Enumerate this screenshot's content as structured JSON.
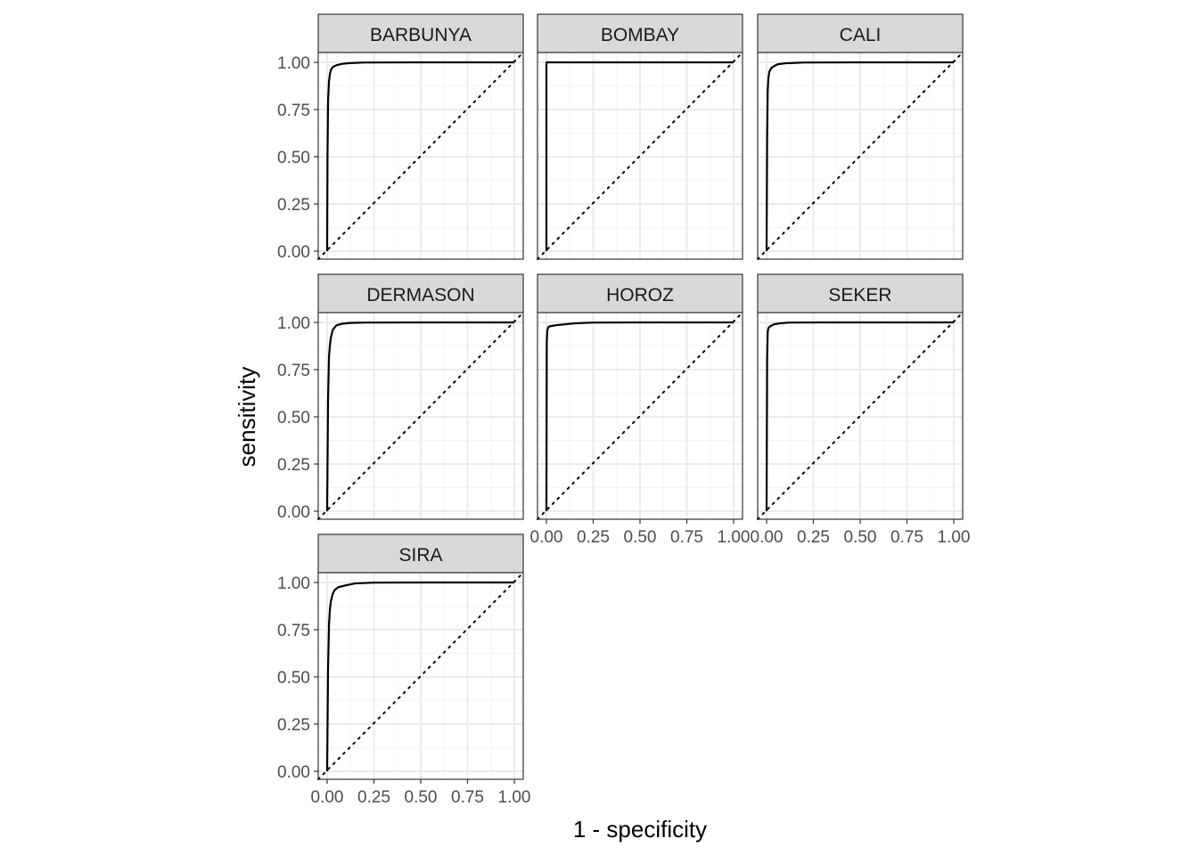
{
  "chart_data": {
    "type": "line",
    "xlabel": "1 - specificity",
    "ylabel": "sensitivity",
    "xlim": [
      0,
      1
    ],
    "ylim": [
      0,
      1
    ],
    "x_ticks": [
      "0.00",
      "0.25",
      "0.50",
      "0.75",
      "1.00"
    ],
    "y_ticks": [
      "0.00",
      "0.25",
      "0.50",
      "0.75",
      "1.00"
    ],
    "tick_values": [
      0,
      0.25,
      0.5,
      0.75,
      1
    ],
    "grid": true,
    "reference_line": "diagonal dotted y = x",
    "colors": {
      "curve": "#000000",
      "strip_fill": "#d9d9d9",
      "strip_border": "#333333",
      "grid_major": "#ebebeb",
      "grid_minor": "#f5f5f5",
      "tick_text": "#4d4d4d"
    },
    "panels": [
      {
        "name": "BARBUNYA",
        "x": [
          0,
          0.002,
          0.005,
          0.01,
          0.015,
          0.02,
          0.03,
          0.05,
          0.08,
          0.12,
          0.2,
          0.5,
          1.0
        ],
        "y": [
          0,
          0.5,
          0.8,
          0.9,
          0.94,
          0.96,
          0.975,
          0.985,
          0.992,
          0.996,
          0.999,
          1.0,
          1.0
        ]
      },
      {
        "name": "BOMBAY",
        "x": [
          0,
          0,
          0.001,
          1.0
        ],
        "y": [
          0,
          0.99,
          1.0,
          1.0
        ]
      },
      {
        "name": "CALI",
        "x": [
          0,
          0.003,
          0.006,
          0.01,
          0.015,
          0.025,
          0.04,
          0.06,
          0.1,
          0.2,
          0.5,
          1.0
        ],
        "y": [
          0,
          0.6,
          0.85,
          0.92,
          0.95,
          0.97,
          0.98,
          0.99,
          0.995,
          0.999,
          1.0,
          1.0
        ]
      },
      {
        "name": "DERMASON",
        "x": [
          0,
          0.005,
          0.01,
          0.015,
          0.02,
          0.03,
          0.05,
          0.08,
          0.12,
          0.2,
          0.5,
          1.0
        ],
        "y": [
          0,
          0.6,
          0.82,
          0.88,
          0.92,
          0.96,
          0.985,
          0.993,
          0.997,
          0.999,
          1.0,
          1.0
        ]
      },
      {
        "name": "HOROZ",
        "x": [
          0,
          0.002,
          0.005,
          0.01,
          0.02,
          0.05,
          0.1,
          0.15,
          0.25,
          0.5,
          1.0
        ],
        "y": [
          0,
          0.9,
          0.96,
          0.975,
          0.98,
          0.985,
          0.99,
          0.995,
          0.999,
          1.0,
          1.0
        ]
      },
      {
        "name": "SEKER",
        "x": [
          0,
          0.003,
          0.006,
          0.01,
          0.02,
          0.04,
          0.07,
          0.12,
          0.3,
          1.0
        ],
        "y": [
          0,
          0.8,
          0.95,
          0.97,
          0.98,
          0.99,
          0.995,
          0.999,
          1.0,
          1.0
        ]
      },
      {
        "name": "SIRA",
        "x": [
          0,
          0.005,
          0.01,
          0.015,
          0.02,
          0.03,
          0.04,
          0.06,
          0.1,
          0.15,
          0.25,
          0.5,
          1.0
        ],
        "y": [
          0,
          0.55,
          0.78,
          0.86,
          0.9,
          0.94,
          0.96,
          0.975,
          0.985,
          0.995,
          0.999,
          1.0,
          1.0
        ]
      }
    ]
  }
}
